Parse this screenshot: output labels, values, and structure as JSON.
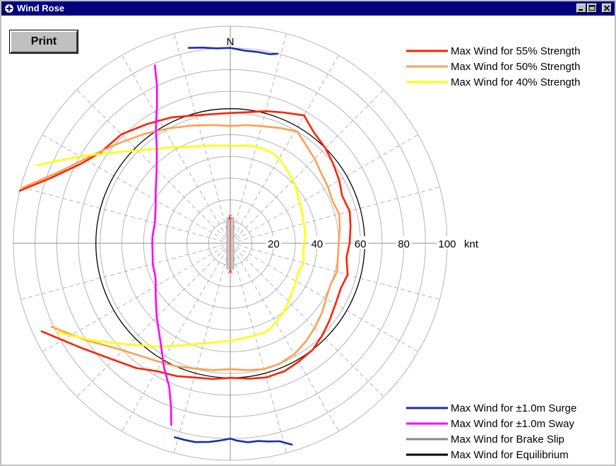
{
  "window": {
    "title": "Wind Rose"
  },
  "toolbar": {
    "print_label": "Print"
  },
  "colors": {
    "titlebar": "#000080",
    "face": "#c0c0c0"
  },
  "chart_data": {
    "type": "polar-line",
    "direction_label": "N",
    "radial_unit": "knt",
    "radial_ticks": [
      20,
      40,
      60,
      80,
      100
    ],
    "radial_max": 100,
    "rings_count": 10,
    "spokes_deg_step": 15,
    "center_markers": {
      "top": "F",
      "bottom": "A"
    },
    "legend_top": [
      {
        "name": "Max Wind for 55% Strength",
        "color": "#ff2200"
      },
      {
        "name": "Max Wind for 50% Strength",
        "color": "#ffa050"
      },
      {
        "name": "Max Wind for 40% Strength",
        "color": "#ffff00"
      }
    ],
    "legend_bottom": [
      {
        "name": "Max Wind for ±1.0m Surge",
        "color": "#1c2ea8"
      },
      {
        "name": "Max Wind for ±1.0m Sway",
        "color": "#ff00ff"
      },
      {
        "name": "Max Wind for Brake Slip",
        "color": "#888888"
      },
      {
        "name": "Max Wind for Equilibrium",
        "color": "#000000"
      }
    ],
    "series": [
      {
        "name": "Max Wind for 55% Strength",
        "color": "#ff2200",
        "points": [
          [
            -76,
            100
          ],
          [
            -70,
            88
          ],
          [
            -62,
            78
          ],
          [
            -55,
            73
          ],
          [
            -45,
            71
          ],
          [
            -35,
            67
          ],
          [
            -25,
            64
          ],
          [
            -15,
            61
          ],
          [
            -7,
            60
          ],
          [
            0,
            60
          ],
          [
            8,
            61
          ],
          [
            15,
            63
          ],
          [
            22,
            65
          ],
          [
            30,
            68
          ],
          [
            37,
            64
          ],
          [
            45,
            62
          ],
          [
            52,
            60
          ],
          [
            60,
            58
          ],
          [
            67,
            56
          ],
          [
            75,
            57
          ],
          [
            82,
            56
          ],
          [
            90,
            55
          ],
          [
            97,
            54
          ],
          [
            105,
            56
          ],
          [
            112,
            55
          ],
          [
            120,
            56
          ],
          [
            128,
            58
          ],
          [
            135,
            60
          ],
          [
            142,
            62
          ],
          [
            150,
            63
          ],
          [
            157,
            64
          ],
          [
            165,
            64
          ],
          [
            172,
            63
          ],
          [
            180,
            62
          ],
          [
            187,
            63
          ],
          [
            195,
            64
          ],
          [
            202,
            66
          ],
          [
            210,
            68
          ],
          [
            217,
            72
          ],
          [
            225,
            76
          ],
          [
            235,
            84
          ],
          [
            245,
            96
          ]
        ]
      },
      {
        "name": "Max Wind for 50% Strength",
        "color": "#ffa050",
        "points": [
          [
            -75,
            99
          ],
          [
            -67,
            85
          ],
          [
            -57,
            75
          ],
          [
            -48,
            69
          ],
          [
            -38,
            64
          ],
          [
            -28,
            60
          ],
          [
            -18,
            57
          ],
          [
            -8,
            55
          ],
          [
            0,
            54
          ],
          [
            8,
            55
          ],
          [
            16,
            56
          ],
          [
            24,
            58
          ],
          [
            31,
            60
          ],
          [
            38,
            57
          ],
          [
            45,
            55
          ],
          [
            52,
            53
          ],
          [
            60,
            52
          ],
          [
            67,
            51
          ],
          [
            75,
            52
          ],
          [
            82,
            51
          ],
          [
            90,
            50
          ],
          [
            97,
            50
          ],
          [
            105,
            51
          ],
          [
            112,
            50
          ],
          [
            120,
            51
          ],
          [
            127,
            53
          ],
          [
            135,
            55
          ],
          [
            142,
            57
          ],
          [
            150,
            59
          ],
          [
            158,
            60
          ],
          [
            165,
            60
          ],
          [
            172,
            59
          ],
          [
            180,
            58
          ],
          [
            188,
            59
          ],
          [
            196,
            60
          ],
          [
            204,
            62
          ],
          [
            212,
            64
          ],
          [
            220,
            67
          ],
          [
            228,
            72
          ],
          [
            236,
            80
          ],
          [
            245,
            91
          ]
        ]
      },
      {
        "name": "Max Wind for 40% Strength",
        "color": "#ffff00",
        "points": [
          [
            -68,
            96
          ],
          [
            -60,
            80
          ],
          [
            -52,
            68
          ],
          [
            -42,
            58
          ],
          [
            -32,
            52
          ],
          [
            -22,
            48
          ],
          [
            -12,
            46
          ],
          [
            -4,
            45
          ],
          [
            4,
            45
          ],
          [
            12,
            46
          ],
          [
            18,
            46
          ],
          [
            24,
            46
          ],
          [
            30,
            45
          ],
          [
            37,
            43
          ],
          [
            45,
            41
          ],
          [
            52,
            39
          ],
          [
            60,
            37
          ],
          [
            67,
            36
          ],
          [
            75,
            35
          ],
          [
            82,
            35
          ],
          [
            90,
            34
          ],
          [
            97,
            34
          ],
          [
            105,
            35
          ],
          [
            112,
            34
          ],
          [
            120,
            35
          ],
          [
            127,
            36
          ],
          [
            135,
            38
          ],
          [
            142,
            40
          ],
          [
            150,
            42
          ],
          [
            157,
            44
          ],
          [
            165,
            44
          ],
          [
            172,
            44
          ],
          [
            180,
            45
          ],
          [
            188,
            46
          ],
          [
            196,
            48
          ],
          [
            205,
            52
          ],
          [
            215,
            58
          ],
          [
            225,
            66
          ],
          [
            235,
            78
          ],
          [
            243,
            90
          ]
        ]
      },
      {
        "name": "Max Wind for ±1.0m Surge",
        "color": "#1c2ea8",
        "points": [
          [
            -12,
            92
          ],
          [
            -8,
            91
          ],
          [
            -4,
            90
          ],
          [
            0,
            90
          ],
          [
            4,
            89
          ],
          [
            8,
            89
          ],
          [
            12,
            89
          ],
          [
            14,
            90
          ],
          [
            163,
            97
          ],
          [
            166,
            94
          ],
          [
            169,
            93
          ],
          [
            172,
            92
          ],
          [
            175,
            92
          ],
          [
            178,
            91
          ],
          [
            180,
            90
          ],
          [
            183,
            91
          ],
          [
            186,
            92
          ],
          [
            190,
            93
          ],
          [
            193,
            93
          ],
          [
            196,
            93
          ]
        ]
      },
      {
        "name": "Max Wind for ±1.0m Sway",
        "color": "#ff00ff",
        "points": [
          [
            -23,
            89
          ],
          [
            -25,
            80
          ],
          [
            -28,
            72
          ],
          [
            -33,
            63
          ],
          [
            -38,
            55
          ],
          [
            -45,
            48
          ],
          [
            -55,
            42
          ],
          [
            -65,
            38
          ],
          [
            -75,
            36
          ],
          [
            -85,
            36
          ],
          [
            -90,
            36
          ],
          [
            -95,
            36
          ],
          [
            -105,
            37
          ],
          [
            -115,
            38
          ],
          [
            -125,
            42
          ],
          [
            -135,
            48
          ],
          [
            -145,
            56
          ],
          [
            -152,
            65
          ],
          [
            -157,
            72
          ],
          [
            -160,
            80
          ],
          [
            -162,
            88
          ]
        ]
      }
    ],
    "equilibrium_radius": 62,
    "brake_slip_span": [
      -12,
      12
    ]
  }
}
